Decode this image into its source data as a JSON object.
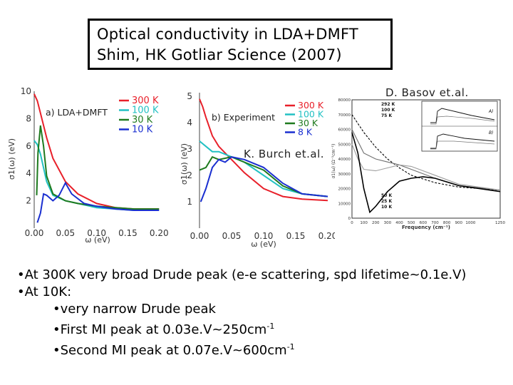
{
  "title": {
    "line1": "Optical conductivity in LDA+DMFT",
    "line2": "Shim, HK Gotliar  Science (2007)"
  },
  "credits": {
    "basov": "D. Basov et.al.",
    "burch": "K. Burch et.al."
  },
  "chart_data": [
    {
      "type": "line",
      "panel_label": "a) LDA+DMFT",
      "xlabel": "ω (eV)",
      "ylabel": "σ1(ω) (eV)",
      "xlim": [
        0,
        0.21
      ],
      "ylim": [
        0,
        10
      ],
      "x_ticks": [
        "0.00",
        "0.05",
        "0.10",
        "0.15",
        "0.20"
      ],
      "y_ticks": [
        "2",
        "4",
        "6",
        "8",
        "10"
      ],
      "colors": {
        "300 K": "#e8202a",
        "100 K": "#22c1c3",
        "30 K": "#1e7a1e",
        "10 K": "#1a2fd0"
      },
      "series": [
        {
          "name": "300 K",
          "x": [
            0,
            0.005,
            0.01,
            0.02,
            0.03,
            0.05,
            0.07,
            0.1,
            0.13,
            0.16,
            0.2
          ],
          "y": [
            9.8,
            9.3,
            8.4,
            6.6,
            5.1,
            3.4,
            2.5,
            1.8,
            1.5,
            1.4,
            1.4
          ]
        },
        {
          "name": "100 K",
          "x": [
            0,
            0.005,
            0.01,
            0.02,
            0.03,
            0.05,
            0.07,
            0.1,
            0.13,
            0.16,
            0.2
          ],
          "y": [
            6.4,
            6.1,
            5.4,
            3.4,
            2.4,
            2.0,
            1.8,
            1.5,
            1.4,
            1.3,
            1.3
          ]
        },
        {
          "name": "30 K",
          "x": [
            0.004,
            0.006,
            0.01,
            0.015,
            0.02,
            0.03,
            0.05,
            0.07,
            0.1,
            0.13,
            0.16,
            0.2
          ],
          "y": [
            2.4,
            5.5,
            7.5,
            6.0,
            3.8,
            2.5,
            2.0,
            1.8,
            1.6,
            1.5,
            1.4,
            1.4
          ]
        },
        {
          "name": "10 K",
          "x": [
            0.005,
            0.01,
            0.015,
            0.02,
            0.03,
            0.04,
            0.05,
            0.06,
            0.08,
            0.1,
            0.13,
            0.16,
            0.2
          ],
          "y": [
            0.4,
            1.1,
            2.5,
            2.4,
            2.0,
            2.4,
            3.3,
            2.5,
            1.8,
            1.6,
            1.4,
            1.3,
            1.3
          ]
        }
      ]
    },
    {
      "type": "line",
      "panel_label": "b) Experiment",
      "xlabel": "ω (eV)",
      "ylabel": "σ1(ω) (eV)",
      "xlim": [
        0,
        0.2
      ],
      "ylim": [
        0,
        5
      ],
      "x_ticks": [
        "0.00",
        "0.05",
        "0.10",
        "0.15",
        "0.20"
      ],
      "y_ticks": [
        "1",
        "2",
        "3",
        "4",
        "5"
      ],
      "colors": {
        "300 K": "#e8202a",
        "100 K": "#22c1c3",
        "30 K": "#1e7a1e",
        "8 K": "#1a2fd0"
      },
      "series": [
        {
          "name": "300 K",
          "x": [
            0,
            0.005,
            0.01,
            0.02,
            0.03,
            0.05,
            0.07,
            0.1,
            0.13,
            0.16,
            0.2
          ],
          "y": [
            4.9,
            4.6,
            4.2,
            3.5,
            3.1,
            2.6,
            2.1,
            1.5,
            1.2,
            1.1,
            1.05
          ]
        },
        {
          "name": "100 K",
          "x": [
            0,
            0.01,
            0.02,
            0.03,
            0.05,
            0.07,
            0.1,
            0.13,
            0.16,
            0.2
          ],
          "y": [
            3.3,
            3.1,
            2.9,
            2.9,
            2.7,
            2.5,
            2.0,
            1.5,
            1.3,
            1.2
          ]
        },
        {
          "name": "30 K",
          "x": [
            0,
            0.01,
            0.02,
            0.03,
            0.05,
            0.07,
            0.1,
            0.13,
            0.16,
            0.2
          ],
          "y": [
            2.2,
            2.3,
            2.7,
            2.6,
            2.7,
            2.5,
            2.2,
            1.6,
            1.3,
            1.2
          ]
        },
        {
          "name": "8 K",
          "x": [
            0.002,
            0.01,
            0.02,
            0.03,
            0.04,
            0.05,
            0.07,
            0.1,
            0.13,
            0.16,
            0.2
          ],
          "y": [
            1.0,
            1.5,
            2.3,
            2.6,
            2.5,
            2.7,
            2.6,
            2.3,
            1.7,
            1.3,
            1.2
          ]
        }
      ]
    },
    {
      "type": "line",
      "xlabel": "Frequency (cm⁻¹)",
      "ylabel": "σ1(ω) (Ω⁻¹cm⁻¹)",
      "xlim": [
        0,
        1250
      ],
      "ylim": [
        0,
        80000
      ],
      "x_ticks": [
        "0",
        "100",
        "200",
        "300",
        "400",
        "500",
        "600",
        "700",
        "800",
        "900",
        "1000",
        "1250"
      ],
      "y_ticks": [
        "0",
        "10000",
        "20000",
        "30000",
        "40000",
        "50000",
        "60000",
        "70000",
        "80000"
      ],
      "legend": [
        "292 K",
        "100 K",
        "75 K",
        "50 K",
        "25 K",
        "10 K"
      ],
      "colors": {
        "292 K": "#000000",
        "100 K": "#6f6f6f",
        "75 K": "#8a8a8a",
        "50 K": "#9e9e9e",
        "25 K": "#b5b5b5",
        "10 K": "#000000"
      },
      "series": [
        {
          "name": "292 K",
          "x": [
            0,
            50,
            100,
            200,
            300,
            400,
            500,
            700,
            900,
            1250
          ],
          "y": [
            70000,
            64000,
            58000,
            48000,
            40000,
            34000,
            29000,
            24000,
            21000,
            19000
          ]
        },
        {
          "name": "100 K",
          "x": [
            0,
            50,
            100,
            200,
            300,
            400,
            500,
            700,
            900,
            1250
          ],
          "y": [
            60000,
            52000,
            44000,
            40000,
            38000,
            36000,
            33000,
            27000,
            22000,
            19000
          ]
        },
        {
          "name": "50 K",
          "x": [
            0,
            50,
            100,
            200,
            300,
            400,
            500,
            700,
            900,
            1250
          ],
          "y": [
            50000,
            40000,
            33000,
            32000,
            34000,
            36000,
            35000,
            29000,
            23000,
            19000
          ]
        },
        {
          "name": "10 K",
          "x": [
            0,
            50,
            100,
            150,
            200,
            300,
            400,
            500,
            600,
            700,
            900,
            1250
          ],
          "y": [
            58000,
            44000,
            20000,
            4000,
            8000,
            18000,
            25000,
            27000,
            28000,
            27000,
            22000,
            18000
          ]
        }
      ],
      "insets": [
        "A)",
        "B)"
      ]
    }
  ],
  "bullets": [
    {
      "text": "At 300K very broad Drude peak (e-e scattering, spd lifetime~0.1e.V)",
      "indent": false
    },
    {
      "text": "At 10K:",
      "indent": false
    },
    {
      "text": "very narrow Drude peak",
      "indent": true
    },
    {
      "text": "First MI peak at 0.03e.V~250cm",
      "sup": "-1",
      "indent": true
    },
    {
      "text": "Second MI peak at 0.07e.V~600cm",
      "sup": "-1",
      "indent": true
    }
  ]
}
